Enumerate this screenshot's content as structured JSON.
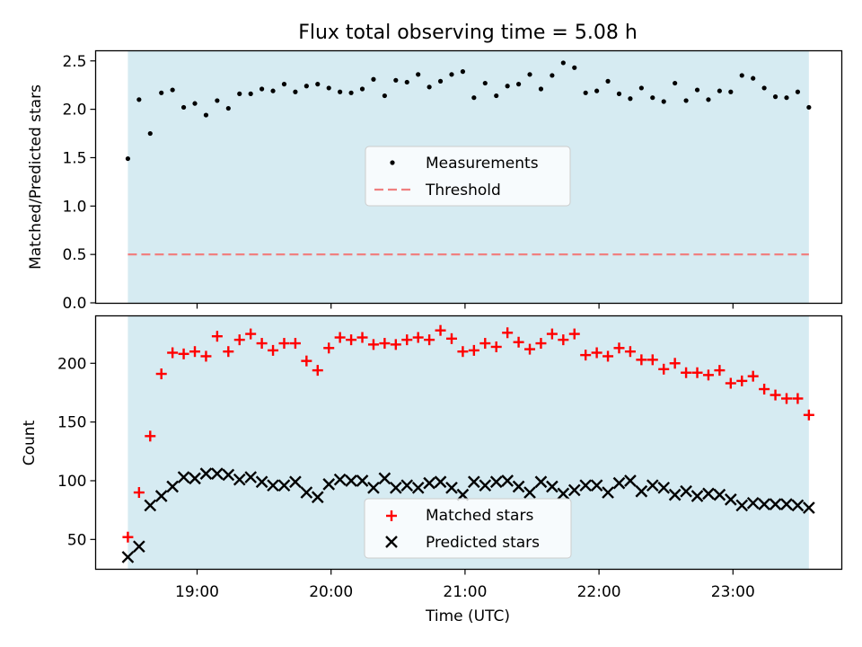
{
  "figure": {
    "title": "Flux total observing time = 5.08 h",
    "xlabel": "Time (UTC)",
    "xticks": [
      "19:00",
      "20:00",
      "21:00",
      "22:00",
      "23:00"
    ],
    "observing_window": {
      "start": "18:29",
      "end": "23:34"
    },
    "colors": {
      "window": "#add8e6",
      "threshold": "#f08080",
      "matched": "#ff0000",
      "predicted": "#000000",
      "measurements": "#000000"
    }
  },
  "chart_data": [
    {
      "type": "scatter",
      "ylabel": "Matched/Predicted stars",
      "ylim": [
        0,
        2.6
      ],
      "yticks": [
        "0.0",
        "0.5",
        "1.0",
        "1.5",
        "2.0",
        "2.5"
      ],
      "legend": {
        "placement": "center",
        "entries": [
          "Measurements",
          "Threshold"
        ]
      },
      "threshold": 0.5,
      "x": [
        "18:29",
        "18:34",
        "18:39",
        "18:44",
        "18:49",
        "18:54",
        "18:59",
        "19:04",
        "19:09",
        "19:14",
        "19:19",
        "19:24",
        "19:29",
        "19:34",
        "19:39",
        "19:44",
        "19:49",
        "19:54",
        "19:59",
        "20:04",
        "20:09",
        "20:14",
        "20:19",
        "20:24",
        "20:29",
        "20:34",
        "20:39",
        "20:44",
        "20:49",
        "20:54",
        "20:59",
        "21:04",
        "21:09",
        "21:14",
        "21:19",
        "21:24",
        "21:29",
        "21:34",
        "21:39",
        "21:44",
        "21:49",
        "21:54",
        "21:59",
        "22:04",
        "22:09",
        "22:14",
        "22:19",
        "22:24",
        "22:29",
        "22:34",
        "22:39",
        "22:44",
        "22:49",
        "22:54",
        "22:59",
        "23:04",
        "23:09",
        "23:14",
        "23:19",
        "23:24",
        "23:29",
        "23:34"
      ],
      "series": [
        {
          "name": "Measurements",
          "values": [
            1.49,
            2.1,
            1.75,
            2.17,
            2.2,
            2.02,
            2.06,
            1.94,
            2.09,
            2.01,
            2.16,
            2.16,
            2.21,
            2.19,
            2.26,
            2.18,
            2.24,
            2.26,
            2.22,
            2.18,
            2.17,
            2.21,
            2.31,
            2.14,
            2.3,
            2.28,
            2.36,
            2.23,
            2.29,
            2.36,
            2.39,
            2.12,
            2.27,
            2.14,
            2.24,
            2.26,
            2.36,
            2.21,
            2.35,
            2.48,
            2.43,
            2.17,
            2.19,
            2.29,
            2.16,
            2.11,
            2.22,
            2.12,
            2.08,
            2.27,
            2.09,
            2.2,
            2.1,
            2.19,
            2.18,
            2.35,
            2.32,
            2.22,
            2.13,
            2.12,
            2.18,
            2.02
          ]
        }
      ]
    },
    {
      "type": "scatter",
      "ylabel": "Count",
      "ylim": [
        25,
        240
      ],
      "yticks": [
        "50",
        "100",
        "150",
        "200"
      ],
      "legend": {
        "placement": "bottom-center",
        "entries": [
          "Matched stars",
          "Predicted stars"
        ]
      },
      "x": [
        "18:29",
        "18:34",
        "18:39",
        "18:44",
        "18:49",
        "18:54",
        "18:59",
        "19:04",
        "19:09",
        "19:14",
        "19:19",
        "19:24",
        "19:29",
        "19:34",
        "19:39",
        "19:44",
        "19:49",
        "19:54",
        "19:59",
        "20:04",
        "20:09",
        "20:14",
        "20:19",
        "20:24",
        "20:29",
        "20:34",
        "20:39",
        "20:44",
        "20:49",
        "20:54",
        "20:59",
        "21:04",
        "21:09",
        "21:14",
        "21:19",
        "21:24",
        "21:29",
        "21:34",
        "21:39",
        "21:44",
        "21:49",
        "21:54",
        "21:59",
        "22:04",
        "22:09",
        "22:14",
        "22:19",
        "22:24",
        "22:29",
        "22:34",
        "22:39",
        "22:44",
        "22:49",
        "22:54",
        "22:59",
        "23:04",
        "23:09",
        "23:14",
        "23:19",
        "23:24",
        "23:29",
        "23:34"
      ],
      "series": [
        {
          "name": "Matched stars",
          "values": [
            52,
            90,
            138,
            191,
            209,
            208,
            210,
            206,
            223,
            210,
            220,
            225,
            217,
            211,
            217,
            217,
            202,
            194,
            213,
            222,
            220,
            222,
            216,
            217,
            216,
            220,
            222,
            220,
            228,
            221,
            210,
            211,
            217,
            214,
            226,
            218,
            212,
            217,
            225,
            220,
            225,
            207,
            209,
            206,
            213,
            210,
            203,
            203,
            195,
            200,
            192,
            192,
            190,
            194,
            183,
            185,
            189,
            178,
            173,
            170,
            170,
            156
          ]
        },
        {
          "name": "Predicted stars",
          "values": [
            35,
            44,
            79,
            87,
            95,
            103,
            102,
            106,
            106,
            105,
            101,
            103,
            99,
            96,
            96,
            99,
            90,
            86,
            97,
            101,
            100,
            100,
            94,
            102,
            94,
            96,
            94,
            98,
            99,
            94,
            88,
            99,
            96,
            99,
            100,
            95,
            90,
            99,
            95,
            89,
            92,
            96,
            96,
            90,
            98,
            100,
            91,
            96,
            94,
            88,
            91,
            87,
            89,
            88,
            84,
            79,
            81,
            80,
            80,
            80,
            79,
            77
          ]
        }
      ]
    }
  ]
}
